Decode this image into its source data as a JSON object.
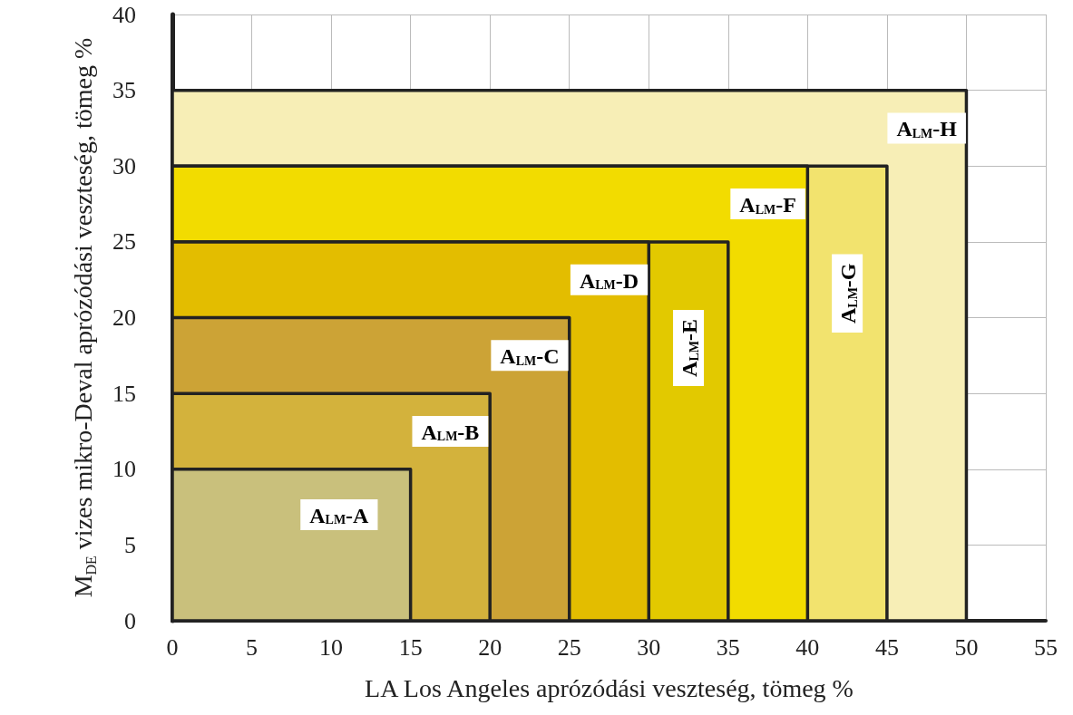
{
  "chart_data": {
    "type": "area",
    "xlabel": "LA Los Angeles aprózódási veszteség, tömeg %",
    "ylabel": "M$_{DE}$ vizes mikro-Deval aprózódási veszteség, tömeg %",
    "xlim": [
      0,
      55
    ],
    "xticks": [
      0,
      5,
      10,
      15,
      20,
      25,
      30,
      35,
      40,
      45,
      50,
      55
    ],
    "ylim": [
      0,
      40
    ],
    "yticks": [
      0,
      5,
      10,
      15,
      20,
      25,
      30,
      35,
      40
    ],
    "grid": true,
    "series": [
      {
        "name": "A$_{LM}$-A",
        "color": "#c9c07c",
        "x": [
          0,
          15
        ],
        "values": [
          10,
          10
        ]
      },
      {
        "name": "A$_{LM}$-B",
        "color": "#d3b23c",
        "x": [
          0,
          20
        ],
        "values": [
          15,
          15
        ]
      },
      {
        "name": "A$_{LM}$-C",
        "color": "#cca336",
        "x": [
          0,
          25
        ],
        "values": [
          20,
          20
        ]
      },
      {
        "name": "A$_{LM}$-D",
        "color": "#e3bd00",
        "x": [
          0,
          30
        ],
        "values": [
          25,
          25
        ]
      },
      {
        "name": "A$_{LM}$-E",
        "color": "#e2c900",
        "x": [
          0,
          35
        ],
        "values": [
          25,
          25
        ]
      },
      {
        "name": "A$_{LM}$-F",
        "color": "#f2dc00",
        "x": [
          0,
          40
        ],
        "values": [
          30,
          30
        ]
      },
      {
        "name": "A$_{LM}$-G",
        "color": "#f2e36e",
        "x": [
          0,
          45
        ],
        "values": [
          30,
          30
        ]
      },
      {
        "name": "A$_{LM}$-H",
        "color": "#f7eeb6",
        "x": [
          0,
          50
        ],
        "values": [
          35,
          35
        ]
      }
    ]
  }
}
